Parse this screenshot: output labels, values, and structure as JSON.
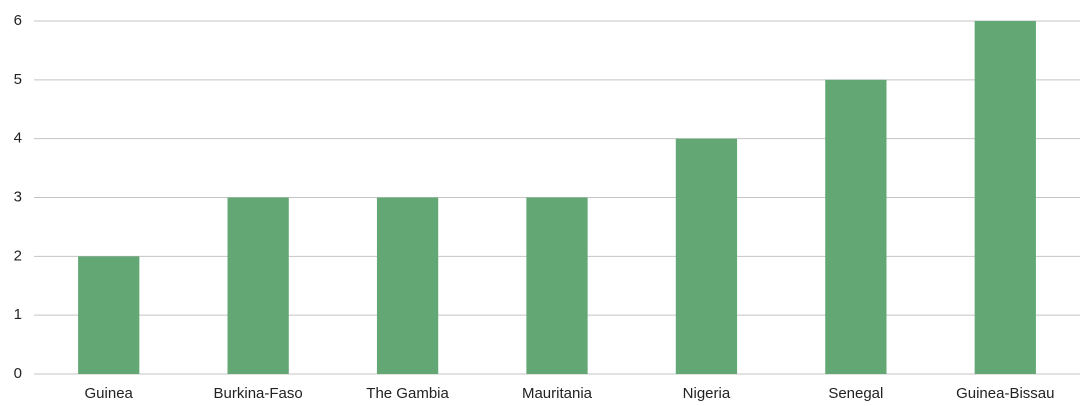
{
  "chart_data": {
    "type": "bar",
    "categories": [
      "Guinea",
      "Burkina-Faso",
      "The Gambia",
      "Mauritania",
      "Nigeria",
      "Senegal",
      "Guinea-Bissau"
    ],
    "values": [
      2,
      3,
      3,
      3,
      4,
      5,
      6
    ],
    "color": "#62a774",
    "ylim": [
      0,
      6
    ],
    "yticks": [
      0,
      1,
      2,
      3,
      4,
      5,
      6
    ],
    "grid": true
  }
}
